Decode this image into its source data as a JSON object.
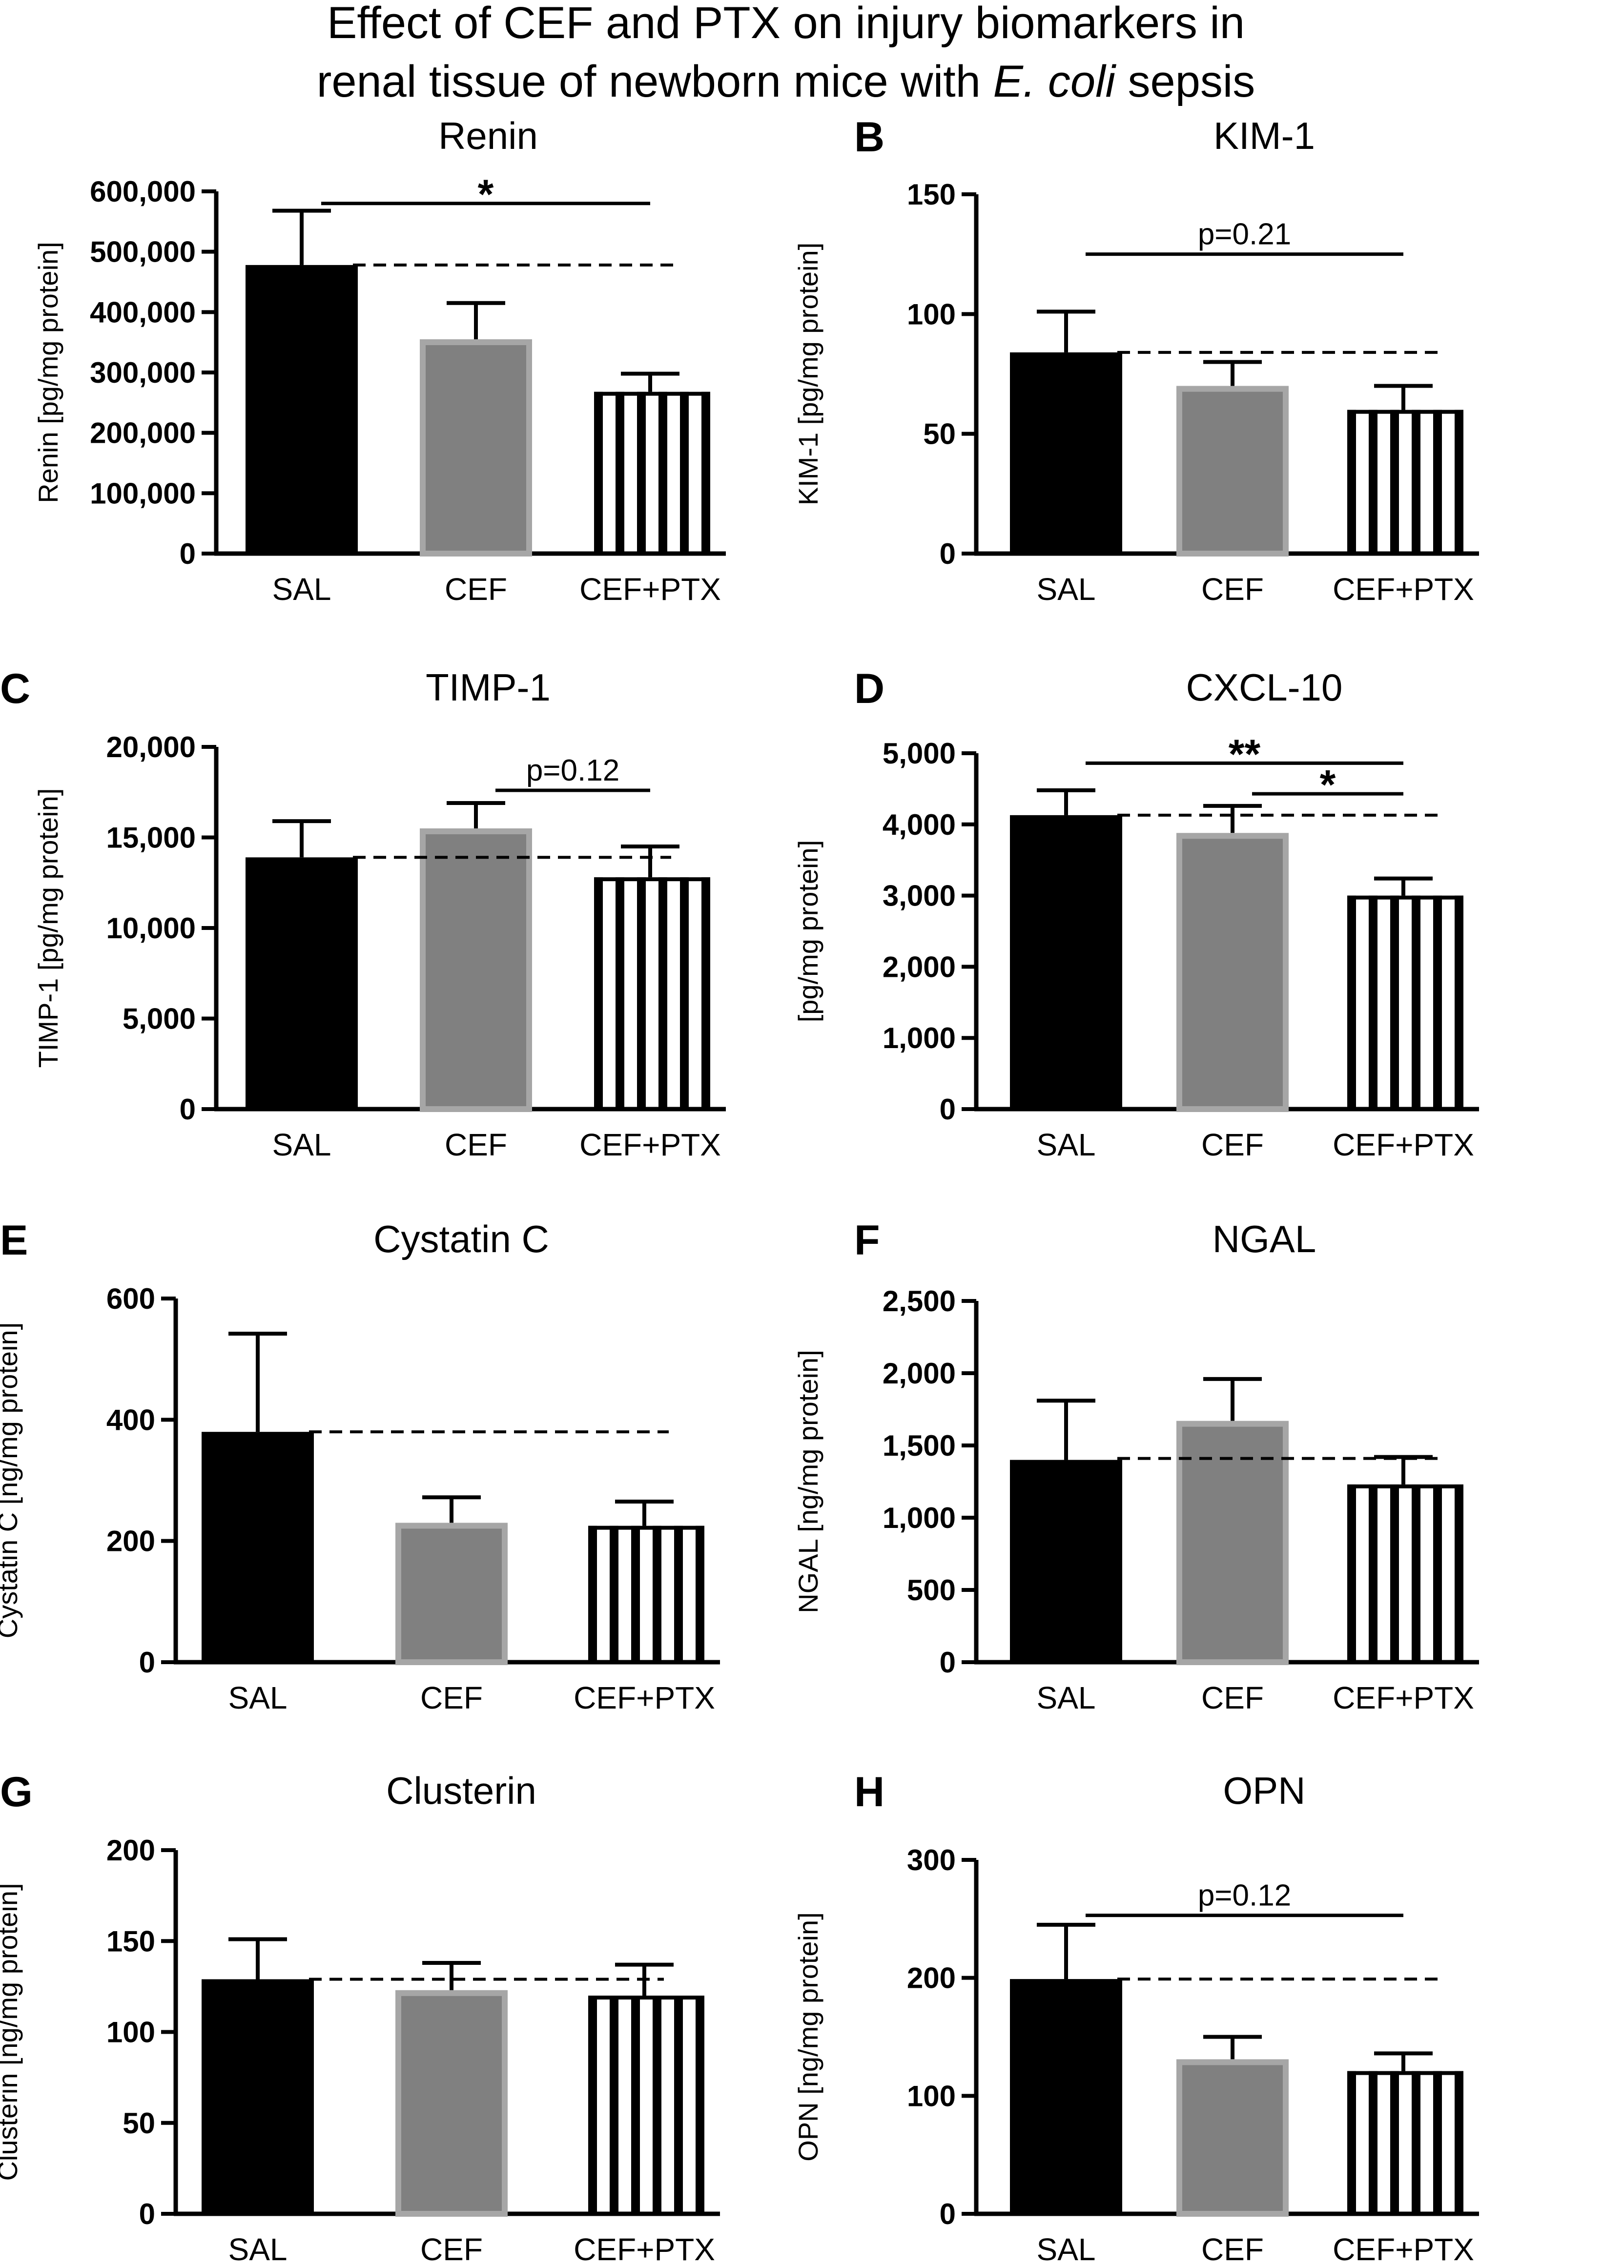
{
  "figure_title": {
    "line1": "Effect of CEF and PTX on injury biomarkers in",
    "line2_prefix": "renal tissue of  newborn mice with ",
    "line2_italic": "E. coli",
    "line2_suffix": " sepsis"
  },
  "colors": {
    "SAL": "#000000",
    "CEF_fill": "#808080",
    "CEF_edge": "#a6a6a6",
    "CEF_PTX": "#000000"
  },
  "chart_data": [
    {
      "type": "bar",
      "panel": "",
      "title": "Renin",
      "ylabel": "Renin [pg/mg protein]",
      "categories": [
        "SAL",
        "CEF",
        "CEF+PTX"
      ],
      "values": [
        478000,
        355000,
        268000
      ],
      "errors": [
        90000,
        60000,
        30000
      ],
      "ylim": [
        0,
        600000
      ],
      "yticks": [
        0,
        100000,
        200000,
        300000,
        400000,
        500000,
        600000
      ],
      "ytick_labels": [
        "0",
        "100,000",
        "200,000",
        "300,000",
        "400,000",
        "500,000",
        "600,000"
      ],
      "reference_line": 478000,
      "annotations": [
        {
          "from": 0,
          "to": 2,
          "label": "*",
          "at": 580000,
          "kind": "star"
        }
      ]
    },
    {
      "type": "bar",
      "panel": "B",
      "title": "KIM-1",
      "ylabel": "KIM-1 [pg/mg protein]",
      "categories": [
        "SAL",
        "CEF",
        "CEF+PTX"
      ],
      "values": [
        84,
        70,
        60
      ],
      "errors": [
        17,
        10,
        10
      ],
      "ylim": [
        0,
        150
      ],
      "yticks": [
        0,
        50,
        100,
        150
      ],
      "ytick_labels": [
        "0",
        "50",
        "100",
        "150"
      ],
      "reference_line": 84,
      "annotations": [
        {
          "from": 0,
          "to": 2,
          "label": "p=0.21",
          "at": 125,
          "kind": "p"
        }
      ]
    },
    {
      "type": "bar",
      "panel": "C",
      "title": "TIMP-1",
      "ylabel": "TIMP-1 [pg/mg protein]",
      "categories": [
        "SAL",
        "CEF",
        "CEF+PTX"
      ],
      "values": [
        13900,
        15500,
        12800
      ],
      "errors": [
        2000,
        1400,
        1700
      ],
      "ylim": [
        0,
        20000
      ],
      "yticks": [
        0,
        5000,
        10000,
        15000,
        20000
      ],
      "ytick_labels": [
        "0",
        "5,000",
        "10,000",
        "15,000",
        "20,000"
      ],
      "reference_line": 13900,
      "annotations": [
        {
          "from": 1,
          "to": 2,
          "label": "p=0.12",
          "at": 17600,
          "kind": "p"
        }
      ]
    },
    {
      "type": "bar",
      "panel": "D",
      "title": "CXCL-10",
      "ylabel": "[pg/mg protein]",
      "categories": [
        "SAL",
        "CEF",
        "CEF+PTX"
      ],
      "values": [
        4130,
        3880,
        3000
      ],
      "errors": [
        350,
        380,
        240
      ],
      "ylim": [
        0,
        5000
      ],
      "yticks": [
        0,
        1000,
        2000,
        3000,
        4000,
        5000
      ],
      "ytick_labels": [
        "0",
        "1,000",
        "2,000",
        "3,000",
        "4,000",
        "5,000"
      ],
      "reference_line": 4130,
      "annotations": [
        {
          "from": 0,
          "to": 2,
          "label": "**",
          "at": 4860,
          "kind": "star"
        },
        {
          "from": 1,
          "to": 2,
          "label": "*",
          "at": 4430,
          "kind": "star"
        }
      ]
    },
    {
      "type": "bar",
      "panel": "E",
      "title": "Cystatin C",
      "ylabel": "Cystatin C [ng/mg protein]",
      "categories": [
        "SAL",
        "CEF",
        "CEF+PTX"
      ],
      "values": [
        380,
        230,
        225
      ],
      "errors": [
        162,
        42,
        40
      ],
      "ylim": [
        0,
        600
      ],
      "yticks": [
        0,
        200,
        400,
        600
      ],
      "ytick_labels": [
        "0",
        "200",
        "400",
        "600"
      ],
      "reference_line": 380,
      "annotations": []
    },
    {
      "type": "bar",
      "panel": "F",
      "title": "NGAL",
      "ylabel": "NGAL [ng/mg protein]",
      "categories": [
        "SAL",
        "CEF",
        "CEF+PTX"
      ],
      "values": [
        1400,
        1670,
        1230
      ],
      "errors": [
        410,
        290,
        190
      ],
      "ylim": [
        0,
        2500
      ],
      "yticks": [
        0,
        500,
        1000,
        1500,
        2000,
        2500
      ],
      "ytick_labels": [
        "0",
        "500",
        "1,000",
        "1,500",
        "2,000",
        "2,500"
      ],
      "reference_line": 1410,
      "annotations": []
    },
    {
      "type": "bar",
      "panel": "G",
      "title": "Clusterin",
      "ylabel": "Clusterin [ng/mg protein]",
      "categories": [
        "SAL",
        "CEF",
        "CEF+PTX"
      ],
      "values": [
        129,
        123,
        120
      ],
      "errors": [
        22,
        15,
        17
      ],
      "ylim": [
        0,
        200
      ],
      "yticks": [
        0,
        50,
        100,
        150,
        200
      ],
      "ytick_labels": [
        "0",
        "50",
        "100",
        "150",
        "200"
      ],
      "reference_line": 129,
      "annotations": []
    },
    {
      "type": "bar",
      "panel": "H",
      "title": "OPN",
      "ylabel": "OPN [ng/mg protein]",
      "categories": [
        "SAL",
        "CEF",
        "CEF+PTX"
      ],
      "values": [
        199,
        131,
        121
      ],
      "errors": [
        46,
        19,
        15
      ],
      "ylim": [
        0,
        300
      ],
      "yticks": [
        0,
        100,
        200,
        300
      ],
      "ytick_labels": [
        "0",
        "100",
        "200",
        "300"
      ],
      "reference_line": 199,
      "annotations": [
        {
          "from": 0,
          "to": 2,
          "label": "p=0.12",
          "at": 253,
          "kind": "p"
        }
      ]
    }
  ]
}
